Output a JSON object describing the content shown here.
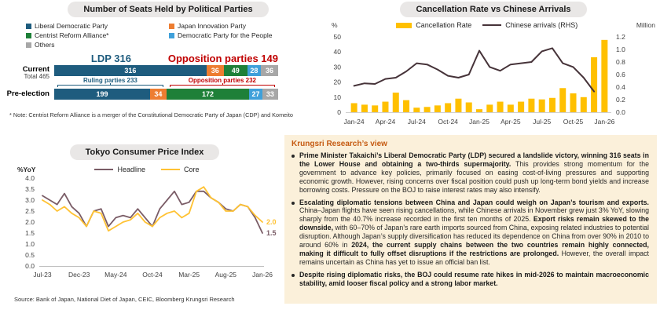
{
  "colors": {
    "ldp_blue": "#1e5c7e",
    "innovation_orange": "#ed7d31",
    "centrist_green": "#1e8038",
    "dpp_lightblue": "#3fa0da",
    "others_gray": "#a7a7a7",
    "opposition_red": "#c00000",
    "bar_yellow": "#ffc000",
    "arrivals_line": "#463339",
    "headline_line": "#7a5c66",
    "core_line": "#ffc233",
    "pill_bg": "#e9e7e6",
    "view_bg": "#fbf0da",
    "view_title": "#c55a11"
  },
  "chart_data": [
    {
      "type": "bar",
      "subtype": "stacked-horizontal",
      "title": "Number of Seats Held by Political Parties",
      "categories": [
        "Current",
        "Pre-election"
      ],
      "series": [
        {
          "name": "Liberal Democratic Party",
          "color": "#1e5c7e",
          "values": [
            316,
            199
          ]
        },
        {
          "name": "Japan Innovation Party",
          "color": "#ed7d31",
          "values": [
            36,
            34
          ]
        },
        {
          "name": "Centrist Reform Alliance*",
          "color": "#1e8038",
          "values": [
            49,
            172
          ]
        },
        {
          "name": "Democratic Party for the People",
          "color": "#3fa0da",
          "values": [
            28,
            27
          ]
        },
        {
          "name": "Others",
          "color": "#a7a7a7",
          "values": [
            36,
            33
          ]
        }
      ],
      "total": 465,
      "row1_label": "Current",
      "row1_sublabel": "Total 465",
      "row2_label": "Pre-election",
      "group_label_ldp": "LDP 316",
      "group_label_opposition": "Opposition parties 149",
      "braces": [
        {
          "label": "Ruling parties 233",
          "span": 233,
          "color": "#1e5c7e"
        },
        {
          "label": "Opposition parties 232",
          "span": 232,
          "color": "#c00000"
        }
      ],
      "note": "* Note: Centrist Reform Alliance is a merger of the Constitutional Democratic Party of Japan (CDP) and Komeito"
    },
    {
      "type": "combo",
      "title": "Cancellation Rate vs Chinese Arrivals",
      "x": [
        "Jan-24",
        "Feb-24",
        "Mar-24",
        "Apr-24",
        "May-24",
        "Jun-24",
        "Jul-24",
        "Aug-24",
        "Sep-24",
        "Oct-24",
        "Nov-24",
        "Dec-24",
        "Jan-25",
        "Feb-25",
        "Mar-25",
        "Apr-25",
        "May-25",
        "Jun-25",
        "Jul-25",
        "Aug-25",
        "Sep-25",
        "Oct-25",
        "Nov-25",
        "Dec-25",
        "Jan-26"
      ],
      "x_tick_labels": [
        "Jan-24",
        "Apr-24",
        "Jul-24",
        "Oct-24",
        "Jan-25",
        "Apr-25",
        "Jul-25",
        "Oct-25",
        "Jan-26"
      ],
      "bars": {
        "name": "Cancellation Rate",
        "unit": "%",
        "color": "#ffc000",
        "values": [
          6,
          5,
          4.5,
          7,
          13,
          8,
          3,
          3.5,
          4.5,
          6,
          9,
          6.5,
          2,
          5,
          7,
          5,
          7,
          9,
          8.5,
          9.5,
          16,
          12.5,
          10,
          36.5,
          48
        ]
      },
      "line": {
        "name": "Chinese arrivals (RHS)",
        "unit": "Million",
        "color": "#463339",
        "values": [
          0.42,
          0.46,
          0.45,
          0.53,
          0.55,
          0.65,
          0.78,
          0.76,
          0.68,
          0.58,
          0.55,
          0.6,
          0.98,
          0.72,
          0.66,
          0.76,
          0.78,
          0.8,
          0.97,
          1.02,
          0.78,
          0.72,
          0.55,
          0.33
        ]
      },
      "left_axis": {
        "label": "%",
        "ticks": [
          0,
          10,
          20,
          30,
          40,
          50
        ],
        "max": 50
      },
      "right_axis": {
        "label": "Million",
        "ticks": [
          "0.0",
          "0.2",
          "0.4",
          "0.6",
          "0.8",
          "1.0",
          "1.2"
        ],
        "max": 1.2
      },
      "legend_position": "top"
    },
    {
      "type": "line",
      "title": "Tokyo Consumer Price Index",
      "ylabel": "%YoY",
      "ylim": [
        0,
        4
      ],
      "y_ticks": [
        "4.0",
        "3.5",
        "3.0",
        "2.5",
        "2.0",
        "1.5",
        "1.0",
        "0.5",
        "0.0"
      ],
      "x": [
        "Jul-23",
        "Aug-23",
        "Sep-23",
        "Oct-23",
        "Nov-23",
        "Dec-23",
        "Jan-24",
        "Feb-24",
        "Mar-24",
        "Apr-24",
        "May-24",
        "Jun-24",
        "Jul-24",
        "Aug-24",
        "Sep-24",
        "Oct-24",
        "Nov-24",
        "Dec-24",
        "Jan-25",
        "Feb-25",
        "Mar-25",
        "Apr-25",
        "May-25",
        "Jun-25",
        "Jul-25",
        "Aug-25",
        "Sep-25",
        "Oct-25",
        "Nov-25",
        "Dec-25",
        "Jan-26"
      ],
      "x_tick_labels": [
        "Jul-23",
        "Dec-23",
        "May-24",
        "Oct-24",
        "Mar-25",
        "Aug-25",
        "Jan-26"
      ],
      "series": [
        {
          "name": "Headline",
          "color": "#7a5c66",
          "end_label": "1.5",
          "values": [
            3.2,
            3.0,
            2.8,
            3.3,
            2.7,
            2.4,
            1.8,
            2.5,
            2.6,
            1.8,
            2.2,
            2.3,
            2.2,
            2.6,
            2.2,
            1.8,
            2.6,
            3.0,
            3.4,
            2.8,
            2.9,
            3.4,
            3.4,
            3.1,
            2.9,
            2.6,
            2.5,
            2.8,
            2.7,
            2.2,
            1.5
          ]
        },
        {
          "name": "Core",
          "color": "#ffc233",
          "end_label": "2.0",
          "values": [
            3.0,
            2.8,
            2.5,
            2.7,
            2.4,
            2.2,
            1.8,
            2.5,
            2.4,
            1.6,
            1.8,
            2.0,
            2.1,
            2.4,
            2.0,
            1.8,
            2.2,
            2.4,
            2.5,
            2.2,
            2.4,
            3.4,
            3.6,
            3.1,
            2.9,
            2.5,
            2.5,
            2.8,
            2.7,
            2.3,
            2.0
          ]
        }
      ],
      "legend_position": "top",
      "grid": false
    }
  ],
  "view_panel": {
    "title": "Krungsri Research’s view",
    "bullets": [
      {
        "segments": [
          {
            "b": true,
            "t": "Prime Minister Takaichi’s Liberal Democratic Party (LDP) secured a landslide victory, winning 316 seats in the Lower House and obtaining a two-thirds supermajority."
          },
          {
            "b": false,
            "t": " This provides strong momentum for the government to advance key policies, primarily focused on easing cost-of-living pressures and supporting economic growth. However, rising concerns over fiscal position could push up long-term bond yields and increase borrowing costs. Pressure on the BOJ to raise interest rates may also intensify."
          }
        ]
      },
      {
        "segments": [
          {
            "b": true,
            "t": "Escalating diplomatic tensions between China and Japan could weigh on Japan’s tourism and exports."
          },
          {
            "b": false,
            "t": " China–Japan flights have seen rising cancellations, while Chinese arrivals in November grew just 3% YoY, slowing sharply from the 40.7% increase recorded in the first ten months of 2025. "
          },
          {
            "b": true,
            "t": "Export risks remain skewed to the downside,"
          },
          {
            "b": false,
            "t": " with 60–70% of Japan’s rare earth imports sourced from China, exposing related industries to potential disruption. Although Japan’s supply diversification has reduced its dependence on China from over 90% in 2010 to around 60% in "
          },
          {
            "b": true,
            "t": "2024, the current supply chains between the two countries remain highly connected, making it difficult to fully offset disruptions if the restrictions are prolonged."
          },
          {
            "b": false,
            "t": " However, the overall impact remains uncertain as China has yet to issue an official ban list."
          }
        ]
      },
      {
        "segments": [
          {
            "b": true,
            "t": "Despite rising diplomatic risks, the BOJ could resume rate hikes in mid-2026 to maintain macroeconomic stability, amid looser fiscal policy and a strong labor market."
          }
        ]
      }
    ]
  },
  "source": "Source: Bank of Japan, National Diet of Japan, CEIC, Bloomberg Krungsri Research"
}
